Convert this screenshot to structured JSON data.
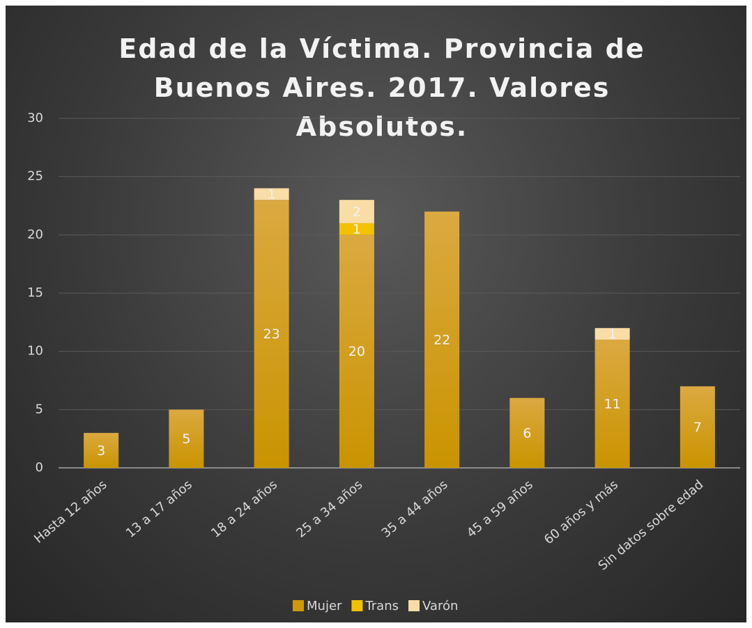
{
  "chart_data": {
    "type": "stacked_bar",
    "title": "Edad de la Víctima. Provincia de Buenos Aires. 2017. Valores Absolutos.",
    "categories": [
      "Hasta 12 años",
      "13 a 17 años",
      "18 a 24 años",
      "25 a 34 años",
      "35 a 44 años",
      "45 a 59 años",
      "60 años y más",
      "Sin datos sobre edad"
    ],
    "series": [
      {
        "name": "Mujer",
        "color": "#d09a06",
        "values": [
          3,
          5,
          23,
          20,
          22,
          6,
          11,
          7
        ]
      },
      {
        "name": "Trans",
        "color": "#f2c200",
        "values": [
          null,
          null,
          null,
          1,
          null,
          null,
          null,
          null
        ]
      },
      {
        "name": "Varón",
        "color": "#f9dca6",
        "values": [
          null,
          null,
          1,
          2,
          null,
          null,
          1,
          null
        ]
      }
    ],
    "ylim": [
      0,
      30
    ],
    "yticks": [
      0,
      5,
      10,
      15,
      20,
      25,
      30
    ],
    "grid": true,
    "legend": "bottom"
  }
}
